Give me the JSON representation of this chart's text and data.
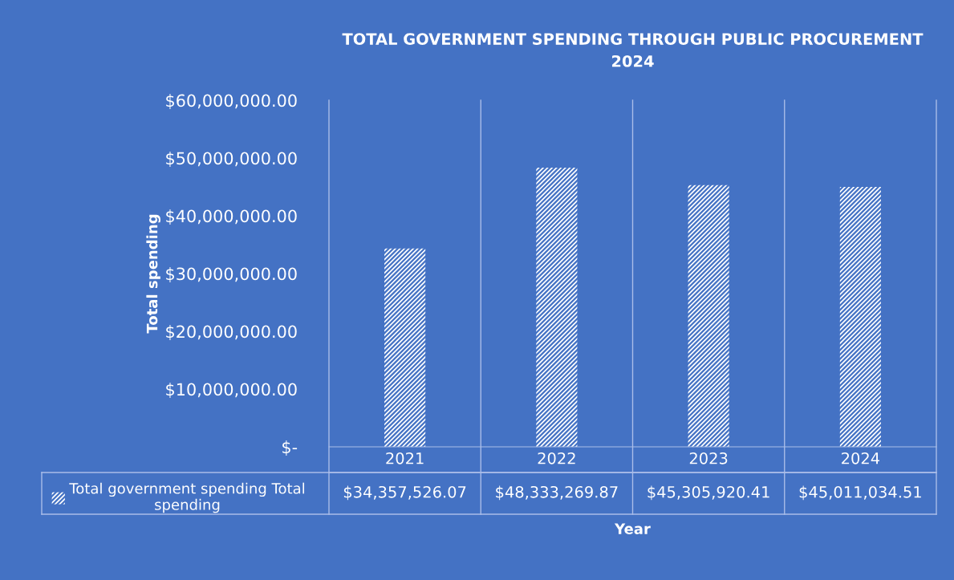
{
  "chart_data": {
    "type": "bar",
    "title": "TOTAL GOVERNMENT SPENDING THROUGH PUBLIC PROCUREMENT\n2024",
    "xlabel": "Year",
    "ylabel": "Total spending",
    "categories": [
      "2021",
      "2022",
      "2023",
      "2024"
    ],
    "series": [
      {
        "name": "Total government spending Total spending",
        "color": "#ffffff",
        "values": [
          34357526.07,
          48333269.87,
          45305920.41,
          45011034.51
        ],
        "value_labels": [
          "$34,357,526.07",
          "$48,333,269.87",
          "$45,305,920.41",
          "$45,011,034.51"
        ]
      }
    ],
    "ylim": [
      0,
      60000000
    ],
    "yticks": [
      {
        "value": 0,
        "label": "$-"
      },
      {
        "value": 10000000,
        "label": "$10,000,000.00"
      },
      {
        "value": 20000000,
        "label": "$20,000,000.00"
      },
      {
        "value": 30000000,
        "label": "$30,000,000.00"
      },
      {
        "value": 40000000,
        "label": "$40,000,000.00"
      },
      {
        "value": 50000000,
        "label": "$50,000,000.00"
      },
      {
        "value": 60000000,
        "label": "$60,000,000.00"
      }
    ],
    "grid": false,
    "legend": "bottom left"
  }
}
